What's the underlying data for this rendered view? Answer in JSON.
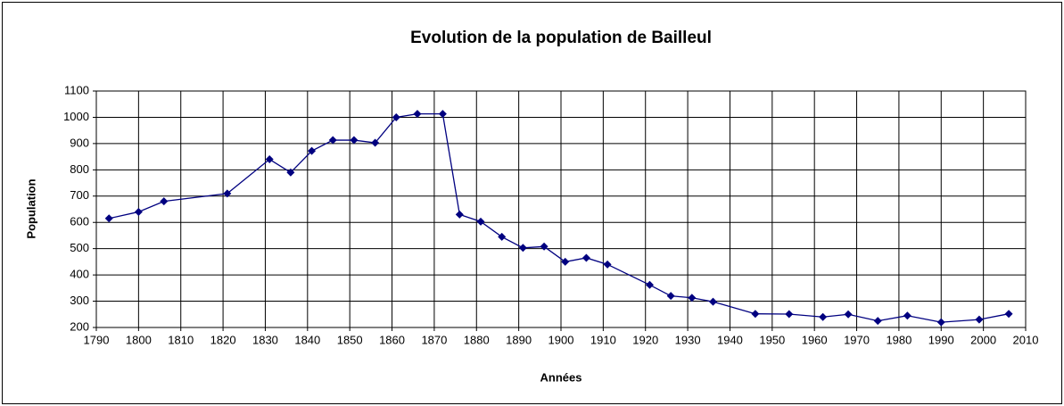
{
  "chart_data": {
    "type": "line",
    "title": "Evolution de la population de Bailleul",
    "x_label": "Années",
    "y_label": "Population",
    "x": [
      1793,
      1800,
      1806,
      1821,
      1831,
      1836,
      1841,
      1846,
      1851,
      1856,
      1861,
      1866,
      1872,
      1876,
      1881,
      1886,
      1891,
      1896,
      1901,
      1906,
      1911,
      1921,
      1926,
      1931,
      1936,
      1946,
      1954,
      1962,
      1968,
      1975,
      1982,
      1990,
      1999,
      2006
    ],
    "series": [
      {
        "name": "Population",
        "color": "#000080",
        "values": [
          615,
          640,
          680,
          710,
          840,
          790,
          872,
          913,
          913,
          903,
          1000,
          1013,
          1013,
          630,
          603,
          545,
          503,
          508,
          450,
          465,
          440,
          362,
          320,
          313,
          298,
          252,
          251,
          240,
          250,
          225,
          245,
          220,
          230,
          252
        ]
      }
    ],
    "xlim": [
      1790,
      2010
    ],
    "xticks": [
      1790,
      1800,
      1810,
      1820,
      1830,
      1840,
      1850,
      1860,
      1870,
      1880,
      1890,
      1900,
      1910,
      1920,
      1930,
      1940,
      1950,
      1960,
      1970,
      1980,
      1990,
      2000,
      2010
    ],
    "ylim": [
      200,
      1100
    ],
    "yticks": [
      200,
      300,
      400,
      500,
      600,
      700,
      800,
      900,
      1000,
      1100
    ],
    "grid": true
  }
}
